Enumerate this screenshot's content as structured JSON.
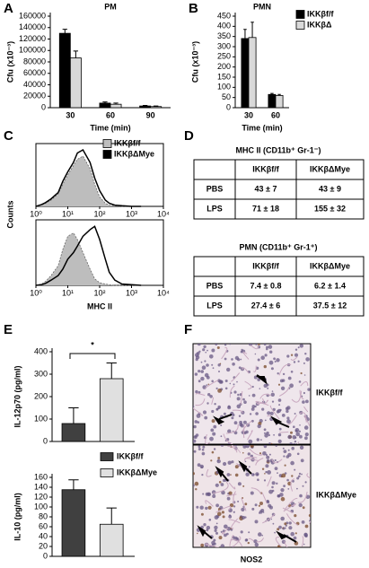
{
  "panel_labels": [
    "A",
    "B",
    "C",
    "D",
    "E",
    "F"
  ],
  "chart_data": [
    {
      "type": "bar",
      "title": "PM",
      "ylabel": "Cfu (x10⁻³)",
      "xlabel": "Time (min)",
      "categories": [
        "30",
        "60",
        "90"
      ],
      "series": [
        {
          "color": "#000000",
          "values": [
            130000,
            8000,
            3000
          ],
          "errors": [
            7000,
            2000,
            1000
          ]
        },
        {
          "color": "#d9d9d9",
          "values": [
            87000,
            6000,
            2000
          ],
          "errors": [
            12000,
            2000,
            1000
          ]
        }
      ],
      "ylim": [
        0,
        160000
      ],
      "yticks": [
        0,
        20000,
        40000,
        60000,
        80000,
        100000,
        120000,
        140000,
        160000
      ]
    },
    {
      "type": "bar",
      "title": "PMN",
      "ylabel": "Cfu (x10⁻³)",
      "xlabel": "Time (min)",
      "categories": [
        "30",
        "60"
      ],
      "series": [
        {
          "name": "IKKβf/f",
          "color": "#000000",
          "values": [
            340,
            65
          ],
          "errors": [
            45,
            5
          ]
        },
        {
          "name": "IKKβΔ",
          "color": "#d9d9d9",
          "values": [
            345,
            60
          ],
          "errors": [
            75,
            5
          ]
        }
      ],
      "ylim": [
        0,
        450
      ],
      "yticks": [
        0,
        50,
        100,
        150,
        200,
        250,
        300,
        350,
        400,
        450
      ]
    },
    {
      "type": "line",
      "xlog": true,
      "x": [
        1,
        1.5,
        2,
        3,
        5,
        7,
        10,
        15,
        20,
        30,
        50,
        70,
        100,
        150,
        200,
        300,
        500,
        1000,
        2000
      ],
      "series": [
        {
          "name": "IKKβf/f",
          "color": "#bdbdbd",
          "filled": true,
          "values": [
            0,
            2,
            5,
            10,
            20,
            35,
            50,
            65,
            75,
            80,
            60,
            35,
            15,
            5,
            2,
            1,
            0,
            0,
            0
          ]
        },
        {
          "name": "IKKβΔMye",
          "color": "#000000",
          "values": [
            0,
            3,
            6,
            12,
            22,
            40,
            55,
            70,
            85,
            90,
            70,
            45,
            25,
            10,
            5,
            2,
            1,
            0,
            0
          ]
        }
      ],
      "xlim": [
        1,
        10000
      ],
      "ylim": [
        0,
        100
      ],
      "xticks": [
        {
          "value": 1,
          "label": "10⁰"
        },
        {
          "value": 10,
          "label": "10¹"
        },
        {
          "value": 100,
          "label": "10²"
        },
        {
          "value": 1000,
          "label": "10³"
        },
        {
          "value": 10000,
          "label": "10⁴"
        }
      ]
    },
    {
      "type": "line",
      "xlog": true,
      "xlabel": "MHC II",
      "ylabel": "Counts",
      "x": [
        1,
        1.5,
        2,
        3,
        5,
        7,
        10,
        15,
        20,
        30,
        50,
        70,
        100,
        150,
        200,
        300,
        500,
        1000,
        2000
      ],
      "series": [
        {
          "color": "#bdbdbd",
          "filled": true,
          "values": [
            0,
            2,
            6,
            15,
            30,
            55,
            75,
            80,
            70,
            50,
            25,
            10,
            4,
            2,
            1,
            0,
            0,
            0,
            0
          ]
        },
        {
          "color": "#000000",
          "values": [
            0,
            1,
            3,
            8,
            15,
            25,
            40,
            50,
            60,
            75,
            85,
            90,
            70,
            40,
            20,
            8,
            2,
            1,
            0
          ]
        }
      ],
      "xlim": [
        1,
        10000
      ],
      "ylim": [
        0,
        100
      ],
      "xticks": [
        {
          "value": 1,
          "label": "10⁰"
        },
        {
          "value": 10,
          "label": "10¹"
        },
        {
          "value": 100,
          "label": "10²"
        },
        {
          "value": 1000,
          "label": "10³"
        },
        {
          "value": 10000,
          "label": "10⁴"
        }
      ]
    },
    {
      "type": "bar",
      "ylabel": "IL-12p70 (pg/ml)",
      "annotation": "*",
      "categories": [
        null
      ],
      "series": [
        {
          "color": "#404040",
          "values": [
            80
          ],
          "errors": [
            70
          ]
        },
        {
          "color": "#e0e0e0",
          "values": [
            280
          ],
          "errors": [
            70
          ]
        }
      ],
      "ylim": [
        0,
        400
      ],
      "yticks": [
        0,
        100,
        200,
        300,
        400
      ]
    },
    {
      "type": "bar",
      "ylabel": "IL-10 (pg/ml)",
      "categories": [
        null
      ],
      "series": [
        {
          "name": "IKKβf/f",
          "color": "#404040",
          "values": [
            135
          ],
          "errors": [
            20
          ]
        },
        {
          "name": "IKKβΔMye",
          "color": "#e0e0e0",
          "values": [
            65
          ],
          "errors": [
            33
          ]
        }
      ],
      "ylim": [
        0,
        160
      ],
      "yticks": [
        0,
        20,
        40,
        60,
        80,
        100,
        120,
        140,
        160
      ]
    }
  ],
  "tables": [
    {
      "title": "MHC II (CD11b⁺ Gr-1⁻)",
      "header": [
        "IKKβf/f",
        "IKKβΔMye"
      ],
      "rows": [
        [
          "PBS",
          "43 ± 7",
          "43 ± 9"
        ],
        [
          "LPS",
          "71 ± 18",
          "155 ± 32"
        ]
      ]
    },
    {
      "title": "PMN (CD11b⁺ Gr-1⁺)",
      "header": [
        "IKKβf/f",
        "IKKβΔMye"
      ],
      "rows": [
        [
          "PBS",
          "7.4 ± 0.8",
          "6.2 ± 1.4"
        ],
        [
          "LPS",
          "27.4 ± 6",
          "37.5 ± 12"
        ]
      ]
    }
  ],
  "micrographs": {
    "labels": [
      "IKKβf/f",
      "IKKβΔMye"
    ],
    "caption": "NOS2"
  }
}
